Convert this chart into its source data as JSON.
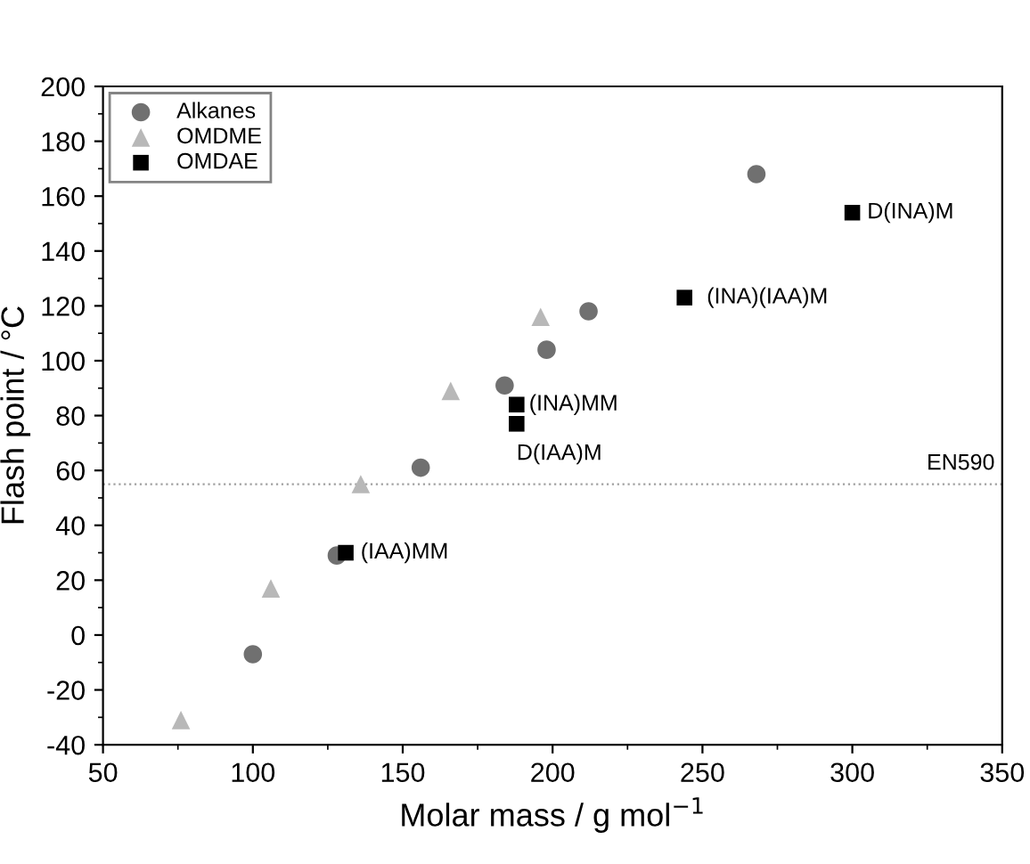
{
  "chart_data": {
    "type": "scatter",
    "xlabel": "Molar mass / g mol$^{−1}$",
    "ylabel": "Flash point / °C",
    "xlim": [
      50,
      350
    ],
    "xticks": [
      50,
      100,
      150,
      200,
      250,
      300,
      350
    ],
    "ylim": [
      -40,
      200
    ],
    "yticks": [
      -40,
      -20,
      0,
      20,
      40,
      60,
      80,
      100,
      120,
      140,
      160,
      180,
      200
    ],
    "grid": false,
    "legend": "top left",
    "series": [
      {
        "name": "Alkanes",
        "color": "#707070",
        "marker": "circle",
        "x": [
          100,
          128,
          156,
          184,
          198,
          212,
          268
        ],
        "values": [
          -7,
          29,
          61,
          91,
          104,
          118,
          168
        ]
      },
      {
        "name": "OMDME",
        "color": "#b8b8b8",
        "marker": "triangle",
        "x": [
          76,
          106,
          136,
          166,
          196
        ],
        "values": [
          -31,
          17,
          55,
          89,
          116
        ]
      },
      {
        "name": "OMDAE",
        "color": "#000000",
        "marker": "square",
        "x": [
          131,
          188,
          188,
          244,
          300
        ],
        "values": [
          30,
          84,
          77,
          123,
          154
        ]
      }
    ],
    "annotations": [
      {
        "text": "(IAA)MM",
        "x": 131,
        "y": 30
      },
      {
        "text": "(INA)MM",
        "x": 188,
        "y": 84
      },
      {
        "text": "D(IAA)M",
        "x": 188,
        "y": 77
      },
      {
        "text": "(INA)(IAA)M",
        "x": 244,
        "y": 123
      },
      {
        "text": "D(INA)M",
        "x": 300,
        "y": 154
      }
    ],
    "ref_lines": [
      {
        "axis": "y",
        "value": 55,
        "label": "EN590",
        "color": "#a0a0a0",
        "line_style": "dotted"
      }
    ]
  }
}
